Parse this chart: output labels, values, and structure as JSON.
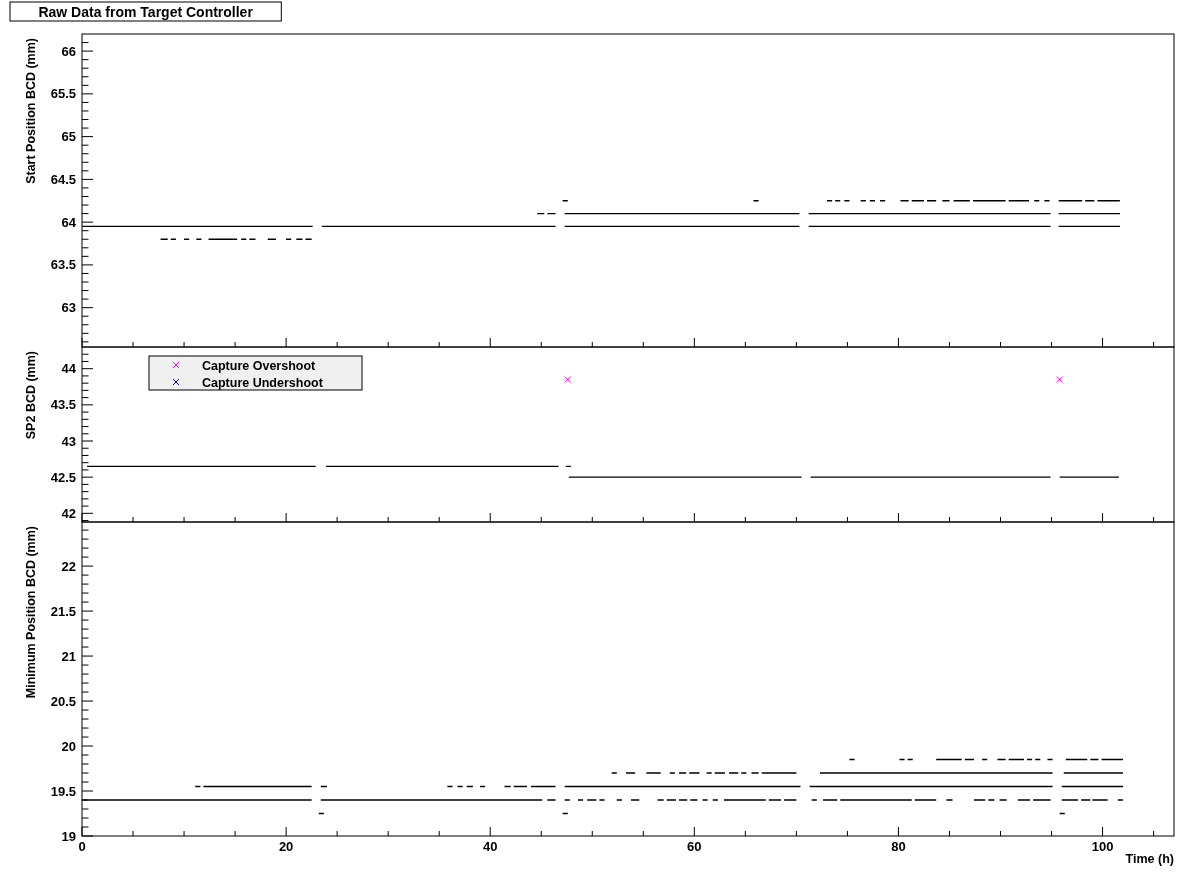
{
  "chart_data": [
    {
      "type": "line",
      "title": "Raw Data from Target Controller",
      "ylabel": "Start Position BCD (mm)",
      "tick_labels": "y",
      "xlim": [
        0,
        107
      ],
      "xticks": [
        0,
        {
          "value": 5,
          "label": null
        },
        {
          "value": 10,
          "label": null
        },
        {
          "value": 15,
          "label": null
        },
        20,
        {
          "value": 25,
          "label": null
        },
        {
          "value": 30,
          "label": null
        },
        {
          "value": 35,
          "label": null
        },
        40,
        {
          "value": 45,
          "label": null
        },
        {
          "value": 50,
          "label": null
        },
        {
          "value": 55,
          "label": null
        },
        60,
        {
          "value": 65,
          "label": null
        },
        {
          "value": 70,
          "label": null
        },
        {
          "value": 75,
          "label": null
        },
        80,
        {
          "value": 85,
          "label": null
        },
        {
          "value": 90,
          "label": null
        },
        {
          "value": 95,
          "label": null
        },
        100,
        {
          "value": 105,
          "label": null
        }
      ],
      "ylim": [
        62.54,
        66.2
      ],
      "yticks": [
        {
          "value": 62.6,
          "label": null
        },
        {
          "value": 62.7,
          "label": null
        },
        {
          "value": 62.8,
          "label": null
        },
        {
          "value": 62.9,
          "label": null
        },
        63,
        {
          "value": 63.1,
          "label": null
        },
        {
          "value": 63.2,
          "label": null
        },
        {
          "value": 63.3,
          "label": null
        },
        {
          "value": 63.4,
          "label": null
        },
        63.5,
        {
          "value": 63.6,
          "label": null
        },
        {
          "value": 63.7,
          "label": null
        },
        {
          "value": 63.8,
          "label": null
        },
        {
          "value": 63.9,
          "label": null
        },
        64,
        {
          "value": 64.1,
          "label": null
        },
        {
          "value": 64.2,
          "label": null
        },
        {
          "value": 64.3,
          "label": null
        },
        {
          "value": 64.4,
          "label": null
        },
        64.5,
        {
          "value": 64.6,
          "label": null
        },
        {
          "value": 64.7,
          "label": null
        },
        {
          "value": 64.8,
          "label": null
        },
        {
          "value": 64.9,
          "label": null
        },
        65,
        {
          "value": 65.1,
          "label": null
        },
        {
          "value": 65.2,
          "label": null
        },
        {
          "value": 65.3,
          "label": null
        },
        {
          "value": 65.4,
          "label": null
        },
        65.5,
        {
          "value": 65.6,
          "label": null
        },
        {
          "value": 65.7,
          "label": null
        },
        {
          "value": 65.8,
          "label": null
        },
        {
          "value": 65.9,
          "label": null
        },
        66,
        {
          "value": 66.1,
          "label": null
        }
      ],
      "series": [
        {
          "color": "#000000",
          "x": [
            0,
            22.6,
            null,
            23.5,
            46.4,
            null,
            47.3,
            70.3,
            null,
            71.2,
            94.9,
            null,
            95.7,
            101.7
          ],
          "values": [
            63.95,
            63.95,
            null,
            63.95,
            63.95,
            null,
            63.95,
            63.95,
            null,
            63.95,
            63.95,
            null,
            63.95,
            63.95
          ]
        },
        {
          "color": "#000000",
          "x": [
            44.6,
            45.3,
            null,
            45.6,
            46.4,
            null,
            47.3,
            70.3,
            null,
            71.2,
            94.9,
            null,
            95.7,
            101.7
          ],
          "values": [
            64.1,
            64.1,
            null,
            64.1,
            64.1,
            null,
            64.1,
            64.1,
            null,
            64.1,
            64.1,
            null,
            64.1,
            64.1
          ]
        },
        {
          "color": "#000000",
          "x": [
            47.1,
            47.6,
            null,
            65.8,
            66.3,
            null,
            73.0,
            73.5,
            null,
            73.8,
            74.3,
            null,
            74.7,
            75.2,
            null,
            76.3,
            76.8,
            null,
            77.2,
            77.7,
            null,
            78.2,
            78.7,
            null,
            80.2,
            81.0,
            null,
            81.3,
            82.5,
            null,
            82.8,
            83.7,
            null,
            84.3,
            85.0,
            null,
            85.4,
            87.0,
            null,
            87.3,
            90.5,
            null,
            90.8,
            92.8,
            null,
            93.3,
            93.8,
            null,
            94.3,
            94.8,
            null,
            95.7,
            98.0,
            null,
            98.3,
            99.2,
            null,
            99.5,
            101.7
          ],
          "values": [
            64.25,
            64.25,
            null,
            64.25,
            64.25,
            null,
            64.25,
            64.25,
            null,
            64.25,
            64.25,
            null,
            64.25,
            64.25,
            null,
            64.25,
            64.25,
            null,
            64.25,
            64.25,
            null,
            64.25,
            64.25,
            null,
            64.25,
            64.25,
            null,
            64.25,
            64.25,
            null,
            64.25,
            64.25,
            null,
            64.25,
            64.25,
            null,
            64.25,
            64.25,
            null,
            64.25,
            64.25,
            null,
            64.25,
            64.25,
            null,
            64.25,
            64.25,
            null,
            64.25,
            64.25,
            null,
            64.25,
            64.25,
            null,
            64.25,
            64.25,
            null,
            64.25,
            64.25
          ]
        },
        {
          "color": "#000000",
          "x": [
            7.7,
            8.4,
            null,
            8.7,
            9.2,
            null,
            10.0,
            10.5,
            null,
            11.2,
            11.7,
            null,
            12.4,
            15.2,
            null,
            15.6,
            16.1,
            null,
            16.4,
            17.0,
            null,
            18.2,
            19.0,
            null,
            20.0,
            20.5,
            null,
            21.0,
            21.6,
            null,
            21.9,
            22.5
          ],
          "values": [
            63.8,
            63.8,
            null,
            63.8,
            63.8,
            null,
            63.8,
            63.8,
            null,
            63.8,
            63.8,
            null,
            63.8,
            63.8,
            null,
            63.8,
            63.8,
            null,
            63.8,
            63.8,
            null,
            63.8,
            63.8,
            null,
            63.8,
            63.8,
            null,
            63.8,
            63.8,
            null,
            63.8,
            63.8
          ]
        }
      ]
    },
    {
      "type": "line",
      "ylabel": "SP2 BCD (mm)",
      "tick_labels": "y",
      "legend": "top left",
      "xlim": [
        0,
        107
      ],
      "xticks": [
        0,
        {
          "value": 5,
          "label": null
        },
        {
          "value": 10,
          "label": null
        },
        {
          "value": 15,
          "label": null
        },
        20,
        {
          "value": 25,
          "label": null
        },
        {
          "value": 30,
          "label": null
        },
        {
          "value": 35,
          "label": null
        },
        40,
        {
          "value": 45,
          "label": null
        },
        {
          "value": 50,
          "label": null
        },
        {
          "value": 55,
          "label": null
        },
        60,
        {
          "value": 65,
          "label": null
        },
        {
          "value": 70,
          "label": null
        },
        {
          "value": 75,
          "label": null
        },
        80,
        {
          "value": 85,
          "label": null
        },
        {
          "value": 90,
          "label": null
        },
        {
          "value": 95,
          "label": null
        },
        100,
        {
          "value": 105,
          "label": null
        }
      ],
      "ylim": [
        41.88,
        44.3
      ],
      "yticks": [
        {
          "value": 41.9,
          "label": null
        },
        42,
        {
          "value": 42.1,
          "label": null
        },
        {
          "value": 42.2,
          "label": null
        },
        {
          "value": 42.3,
          "label": null
        },
        {
          "value": 42.4,
          "label": null
        },
        42.5,
        {
          "value": 42.6,
          "label": null
        },
        {
          "value": 42.7,
          "label": null
        },
        {
          "value": 42.8,
          "label": null
        },
        {
          "value": 42.9,
          "label": null
        },
        43,
        {
          "value": 43.1,
          "label": null
        },
        {
          "value": 43.2,
          "label": null
        },
        {
          "value": 43.3,
          "label": null
        },
        {
          "value": 43.4,
          "label": null
        },
        43.5,
        {
          "value": 43.6,
          "label": null
        },
        {
          "value": 43.7,
          "label": null
        },
        {
          "value": 43.8,
          "label": null
        },
        {
          "value": 43.9,
          "label": null
        },
        44,
        {
          "value": 44.1,
          "label": null
        },
        {
          "value": 44.2,
          "label": null
        }
      ],
      "series": [
        {
          "color": "#000000",
          "x": [
            0.5,
            22.9,
            null,
            23.9,
            46.7,
            null,
            47.4,
            47.9
          ],
          "values": [
            42.65,
            42.65,
            null,
            42.65,
            42.65,
            null,
            42.65,
            42.65
          ]
        },
        {
          "color": "#000000",
          "x": [
            47.7,
            70.5,
            null,
            71.4,
            94.9,
            null,
            95.8,
            101.6
          ],
          "values": [
            42.5,
            42.5,
            null,
            42.5,
            42.5,
            null,
            42.5,
            42.5
          ]
        },
        {
          "type": "scatter",
          "marker": "cross",
          "name": "Capture Overshoot",
          "color": "#ff00ff",
          "x": [
            47.6,
            95.8
          ],
          "values": [
            43.85,
            43.85
          ]
        },
        {
          "type": "scatter",
          "marker": "cross",
          "name": "Capture Undershoot",
          "color": "#0000ff"
        }
      ]
    },
    {
      "type": "line",
      "ylabel": "Minimum Position BCD (mm)",
      "xlabel": "Time (h)",
      "xlim": [
        0,
        107
      ],
      "xticks": [
        0,
        {
          "value": 5,
          "label": null
        },
        {
          "value": 10,
          "label": null
        },
        {
          "value": 15,
          "label": null
        },
        20,
        {
          "value": 25,
          "label": null
        },
        {
          "value": 30,
          "label": null
        },
        {
          "value": 35,
          "label": null
        },
        40,
        {
          "value": 45,
          "label": null
        },
        {
          "value": 50,
          "label": null
        },
        {
          "value": 55,
          "label": null
        },
        60,
        {
          "value": 65,
          "label": null
        },
        {
          "value": 70,
          "label": null
        },
        {
          "value": 75,
          "label": null
        },
        80,
        {
          "value": 85,
          "label": null
        },
        {
          "value": 90,
          "label": null
        },
        {
          "value": 95,
          "label": null
        },
        100,
        {
          "value": 105,
          "label": null
        }
      ],
      "ylim": [
        19,
        22.49
      ],
      "yticks": [
        19,
        {
          "value": 19.1,
          "label": null
        },
        {
          "value": 19.2,
          "label": null
        },
        {
          "value": 19.3,
          "label": null
        },
        {
          "value": 19.4,
          "label": null
        },
        19.5,
        {
          "value": 19.6,
          "label": null
        },
        {
          "value": 19.7,
          "label": null
        },
        {
          "value": 19.8,
          "label": null
        },
        {
          "value": 19.9,
          "label": null
        },
        20,
        {
          "value": 20.1,
          "label": null
        },
        {
          "value": 20.2,
          "label": null
        },
        {
          "value": 20.3,
          "label": null
        },
        {
          "value": 20.4,
          "label": null
        },
        20.5,
        {
          "value": 20.6,
          "label": null
        },
        {
          "value": 20.7,
          "label": null
        },
        {
          "value": 20.8,
          "label": null
        },
        {
          "value": 20.9,
          "label": null
        },
        21,
        {
          "value": 21.1,
          "label": null
        },
        {
          "value": 21.2,
          "label": null
        },
        {
          "value": 21.3,
          "label": null
        },
        {
          "value": 21.4,
          "label": null
        },
        21.5,
        {
          "value": 21.6,
          "label": null
        },
        {
          "value": 21.7,
          "label": null
        },
        {
          "value": 21.8,
          "label": null
        },
        {
          "value": 21.9,
          "label": null
        },
        22,
        {
          "value": 22.1,
          "label": null
        },
        {
          "value": 22.2,
          "label": null
        },
        {
          "value": 22.3,
          "label": null
        },
        {
          "value": 22.4,
          "label": null
        }
      ],
      "series": [
        {
          "color": "#000000",
          "x": [
            0,
            22.5,
            null,
            23.4,
            45.1,
            null,
            45.6,
            46.4,
            null,
            47.3,
            47.8,
            null,
            48.6,
            49.1,
            null,
            49.5,
            50.4,
            null,
            50.7,
            51.2,
            null,
            52.4,
            52.9,
            null,
            53.8,
            54.6,
            null,
            56.4,
            57.0,
            null,
            57.3,
            58.2,
            null,
            58.5,
            59.3,
            null,
            59.6,
            60.3,
            null,
            60.8,
            61.3,
            null,
            61.8,
            62.3,
            null,
            62.9,
            67.0,
            null,
            67.3,
            68.5,
            null,
            68.8,
            70.0,
            null,
            71.5,
            72.0,
            null,
            72.6,
            74.0,
            null,
            74.3,
            81.3,
            null,
            81.6,
            83.7,
            null,
            84.7,
            85.3,
            null,
            87.4,
            88.5,
            null,
            88.8,
            89.4,
            null,
            89.9,
            90.6,
            null,
            91.7,
            92.9,
            null,
            93.2,
            94.9,
            null,
            96.0,
            97.6,
            null,
            97.9,
            98.8,
            null,
            99.0,
            100.5,
            null,
            101.5,
            102.0
          ],
          "values": [
            19.4,
            19.4,
            null,
            19.4,
            19.4,
            null,
            19.4,
            19.4,
            null,
            19.4,
            19.4,
            null,
            19.4,
            19.4,
            null,
            19.4,
            19.4,
            null,
            19.4,
            19.4,
            null,
            19.4,
            19.4,
            null,
            19.4,
            19.4,
            null,
            19.4,
            19.4,
            null,
            19.4,
            19.4,
            null,
            19.4,
            19.4,
            null,
            19.4,
            19.4,
            null,
            19.4,
            19.4,
            null,
            19.4,
            19.4,
            null,
            19.4,
            19.4,
            null,
            19.4,
            19.4,
            null,
            19.4,
            19.4,
            null,
            19.4,
            19.4,
            null,
            19.4,
            19.4,
            null,
            19.4,
            19.4,
            null,
            19.4,
            19.4,
            null,
            19.4,
            19.4,
            null,
            19.4,
            19.4,
            null,
            19.4,
            19.4,
            null,
            19.4,
            19.4,
            null,
            19.4,
            19.4,
            null,
            19.4,
            19.4,
            null,
            19.4,
            19.4,
            null,
            19.4,
            19.4,
            null,
            19.4,
            19.4,
            null,
            19.4,
            19.4
          ]
        },
        {
          "color": "#000000",
          "x": [
            11.1,
            11.6,
            null,
            11.9,
            22.5,
            null,
            23.4,
            24.0,
            null,
            35.8,
            36.3,
            null,
            36.8,
            37.3,
            null,
            37.7,
            38.3,
            null,
            39.0,
            39.5,
            null,
            41.4,
            42.0,
            null,
            42.3,
            43.6,
            null,
            44.0,
            46.4,
            null,
            47.3,
            70.4,
            null,
            71.3,
            95.1,
            null,
            96.0,
            102.0
          ],
          "values": [
            19.55,
            19.55,
            null,
            19.55,
            19.55,
            null,
            19.55,
            19.55,
            null,
            19.55,
            19.55,
            null,
            19.55,
            19.55,
            null,
            19.55,
            19.55,
            null,
            19.55,
            19.55,
            null,
            19.55,
            19.55,
            null,
            19.55,
            19.55,
            null,
            19.55,
            19.55,
            null,
            19.55,
            19.55,
            null,
            19.55,
            19.55,
            null,
            19.55,
            19.55
          ]
        },
        {
          "color": "#000000",
          "x": [
            51.9,
            52.4,
            null,
            53.3,
            54.2,
            null,
            55.3,
            56.7,
            null,
            57.6,
            58.1,
            null,
            58.5,
            59.2,
            null,
            59.5,
            60.5,
            null,
            61.2,
            61.7,
            null,
            62.0,
            63.0,
            null,
            63.4,
            64.3,
            null,
            64.6,
            65.1,
            null,
            65.6,
            66.3,
            null,
            66.6,
            70.0,
            null,
            72.3,
            95.1,
            null,
            96.2,
            102.0
          ],
          "values": [
            19.7,
            19.7,
            null,
            19.7,
            19.7,
            null,
            19.7,
            19.7,
            null,
            19.7,
            19.7,
            null,
            19.7,
            19.7,
            null,
            19.7,
            19.7,
            null,
            19.7,
            19.7,
            null,
            19.7,
            19.7,
            null,
            19.7,
            19.7,
            null,
            19.7,
            19.7,
            null,
            19.7,
            19.7,
            null,
            19.7,
            19.7,
            null,
            19.7,
            19.7,
            null,
            19.7,
            19.7
          ]
        },
        {
          "color": "#000000",
          "x": [
            75.2,
            75.7,
            null,
            80.1,
            80.6,
            null,
            80.9,
            81.4,
            null,
            83.7,
            86.2,
            null,
            86.5,
            87.4,
            null,
            88.2,
            88.7,
            null,
            89.7,
            90.5,
            null,
            90.8,
            92.3,
            null,
            92.6,
            93.1,
            null,
            93.4,
            93.9,
            null,
            94.6,
            95.1,
            null,
            96.4,
            98.5,
            null,
            98.8,
            99.6,
            null,
            99.9,
            102.0
          ],
          "values": [
            19.85,
            19.85,
            null,
            19.85,
            19.85,
            null,
            19.85,
            19.85,
            null,
            19.85,
            19.85,
            null,
            19.85,
            19.85,
            null,
            19.85,
            19.85,
            null,
            19.85,
            19.85,
            null,
            19.85,
            19.85,
            null,
            19.85,
            19.85,
            null,
            19.85,
            19.85,
            null,
            19.85,
            19.85,
            null,
            19.85,
            19.85,
            null,
            19.85,
            19.85,
            null,
            19.85,
            19.85
          ]
        },
        {
          "color": "#000000",
          "x": [
            23.2,
            23.7,
            null,
            47.1,
            47.6,
            null,
            95.8,
            96.3
          ],
          "values": [
            19.25,
            19.25,
            null,
            19.25,
            19.25,
            null,
            19.25,
            19.25
          ]
        }
      ]
    }
  ]
}
